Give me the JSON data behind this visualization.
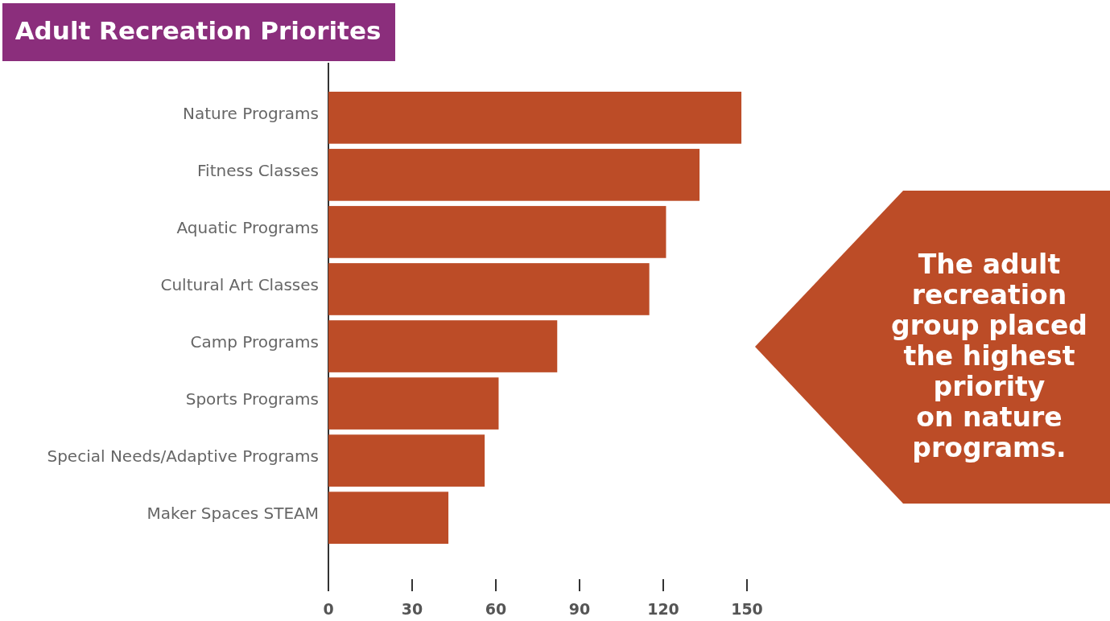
{
  "chart_data": {
    "type": "bar",
    "orientation": "horizontal",
    "title": "Adult Recreation Priorites",
    "categories": [
      "Nature Programs",
      "Fitness Classes",
      "Aquatic Programs",
      "Cultural Art Classes",
      "Camp Programs",
      "Sports Programs",
      "Special Needs/Adaptive Programs",
      "Maker Spaces STEAM"
    ],
    "values": [
      148,
      133,
      121,
      115,
      82,
      61,
      56,
      43
    ],
    "color": "#bc4c27",
    "xlim": [
      0,
      150
    ],
    "xticks": [
      0,
      30,
      60,
      90,
      120,
      150
    ],
    "grid": false,
    "annotations": [
      "The adult\nrecreation\ngroup placed\nthe highest\npriority\non nature\nprograms."
    ]
  }
}
